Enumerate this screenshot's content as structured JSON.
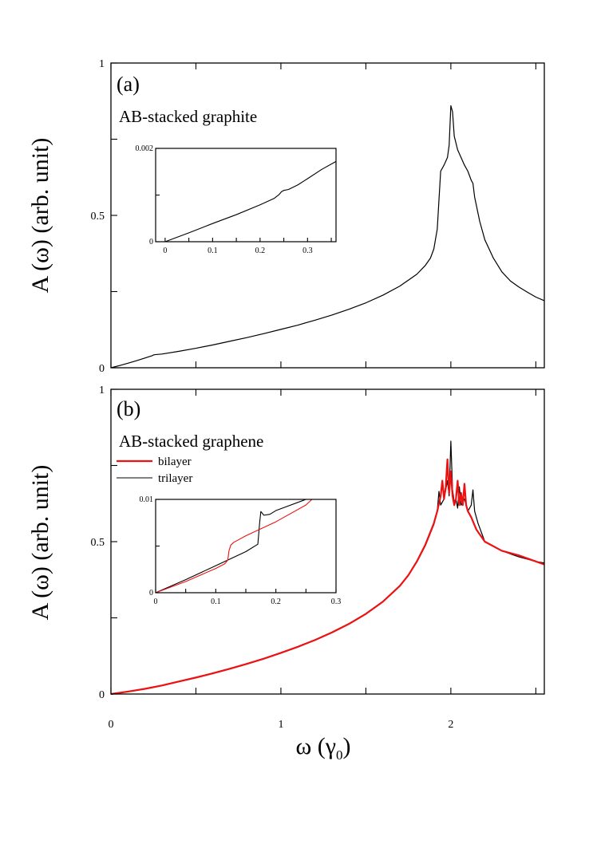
{
  "figure": {
    "xlabel": "ω (γ",
    "xlabel_sub": "0",
    "xlabel_close": ")"
  },
  "chart_data": [
    {
      "type": "line",
      "panel_label": "(a)",
      "title": "AB-stacked graphite",
      "xlabel": "ω (γ0)",
      "ylabel": "A (ω) (arb. unit)",
      "xlim": [
        0,
        2.55
      ],
      "ylim": [
        0,
        1
      ],
      "xticks": [
        0,
        1,
        2
      ],
      "yticks": [
        0,
        0.5,
        1
      ],
      "yticklabels": [
        "0",
        "0.5",
        "1"
      ],
      "series": [
        {
          "color": "#000000",
          "x": [
            0,
            0.05,
            0.1,
            0.15,
            0.2,
            0.245,
            0.25,
            0.26,
            0.3,
            0.4,
            0.5,
            0.6,
            0.7,
            0.8,
            0.9,
            1.0,
            1.1,
            1.2,
            1.3,
            1.4,
            1.5,
            1.6,
            1.7,
            1.8,
            1.85,
            1.88,
            1.9,
            1.92,
            1.94,
            1.96,
            1.98,
            1.99,
            2.0,
            2.01,
            2.02,
            2.04,
            2.06,
            2.08,
            2.1,
            2.12,
            2.13,
            2.14,
            2.17,
            2.2,
            2.25,
            2.3,
            2.35,
            2.4,
            2.45,
            2.5,
            2.55
          ],
          "y": [
            0,
            0.007,
            0.015,
            0.023,
            0.032,
            0.04,
            0.042,
            0.043,
            0.045,
            0.054,
            0.064,
            0.075,
            0.087,
            0.099,
            0.112,
            0.126,
            0.14,
            0.156,
            0.173,
            0.192,
            0.213,
            0.238,
            0.268,
            0.307,
            0.336,
            0.36,
            0.39,
            0.455,
            0.645,
            0.665,
            0.69,
            0.73,
            0.86,
            0.84,
            0.76,
            0.715,
            0.69,
            0.665,
            0.645,
            0.615,
            0.605,
            0.56,
            0.48,
            0.42,
            0.36,
            0.315,
            0.285,
            0.265,
            0.248,
            0.232,
            0.22
          ]
        }
      ],
      "inset": {
        "xlim": [
          -0.02,
          0.36
        ],
        "ylim": [
          0,
          0.002
        ],
        "xticks": [
          0,
          0.1,
          0.2,
          0.3
        ],
        "xticklabels": [
          "0",
          "0.1",
          "0.2",
          "0.3"
        ],
        "yticks": [
          0,
          0.001,
          0.002
        ],
        "yticklabels": [
          "0",
          "",
          "0.002"
        ],
        "series": [
          {
            "color": "#000000",
            "x": [
              0,
              0.05,
              0.1,
              0.15,
              0.2,
              0.23,
              0.24,
              0.245,
              0.25,
              0.26,
              0.28,
              0.3,
              0.33,
              0.36
            ],
            "y": [
              0,
              0.00019,
              0.00039,
              0.00058,
              0.00079,
              0.00093,
              0.00101,
              0.00107,
              0.0011,
              0.00112,
              0.00122,
              0.00135,
              0.00155,
              0.00172
            ]
          }
        ]
      }
    },
    {
      "type": "line",
      "panel_label": "(b)",
      "title": "AB-stacked graphene",
      "xlabel": "ω (γ0)",
      "ylabel": "A (ω) (arb. unit)",
      "xlim": [
        0,
        2.55
      ],
      "ylim": [
        0,
        1
      ],
      "xticks": [
        0,
        1,
        2
      ],
      "xticklabels": [
        "0",
        "1",
        "2"
      ],
      "yticks": [
        0,
        0.5,
        1
      ],
      "yticklabels": [
        "0",
        "0.5",
        "1"
      ],
      "legend": {
        "placement": "top-left"
      },
      "series": [
        {
          "name": "bilayer",
          "color": "#ee1111",
          "x": [
            0,
            0.1,
            0.2,
            0.3,
            0.4,
            0.5,
            0.6,
            0.7,
            0.8,
            0.9,
            1.0,
            1.1,
            1.2,
            1.3,
            1.4,
            1.5,
            1.6,
            1.7,
            1.75,
            1.8,
            1.85,
            1.9,
            1.92,
            1.94,
            1.95,
            1.96,
            1.97,
            1.98,
            1.99,
            2.0,
            2.01,
            2.02,
            2.03,
            2.04,
            2.05,
            2.06,
            2.07,
            2.08,
            2.09,
            2.1,
            2.12,
            2.15,
            2.2,
            2.3,
            2.4,
            2.5,
            2.55
          ],
          "y": [
            0,
            0.008,
            0.017,
            0.028,
            0.041,
            0.054,
            0.068,
            0.083,
            0.099,
            0.116,
            0.135,
            0.155,
            0.177,
            0.202,
            0.23,
            0.263,
            0.303,
            0.355,
            0.39,
            0.435,
            0.49,
            0.56,
            0.6,
            0.65,
            0.7,
            0.64,
            0.68,
            0.77,
            0.66,
            0.73,
            0.65,
            0.62,
            0.64,
            0.7,
            0.62,
            0.66,
            0.62,
            0.69,
            0.62,
            0.6,
            0.58,
            0.54,
            0.5,
            0.47,
            0.455,
            0.435,
            0.425
          ]
        },
        {
          "name": "trilayer",
          "color": "#000000",
          "x": [
            0,
            0.1,
            0.2,
            0.3,
            0.4,
            0.5,
            0.6,
            0.7,
            0.8,
            0.9,
            1.0,
            1.1,
            1.2,
            1.3,
            1.4,
            1.5,
            1.6,
            1.7,
            1.75,
            1.8,
            1.85,
            1.9,
            1.92,
            1.93,
            1.94,
            1.96,
            1.98,
            1.99,
            2.0,
            2.01,
            2.02,
            2.03,
            2.04,
            2.05,
            2.06,
            2.08,
            2.1,
            2.12,
            2.13,
            2.14,
            2.16,
            2.2,
            2.3,
            2.4,
            2.5,
            2.55
          ],
          "y": [
            0,
            0.007,
            0.018,
            0.029,
            0.042,
            0.055,
            0.069,
            0.084,
            0.1,
            0.117,
            0.136,
            0.156,
            0.178,
            0.203,
            0.231,
            0.264,
            0.304,
            0.356,
            0.39,
            0.433,
            0.487,
            0.556,
            0.6,
            0.665,
            0.62,
            0.64,
            0.7,
            0.65,
            0.83,
            0.67,
            0.63,
            0.64,
            0.61,
            0.68,
            0.62,
            0.64,
            0.6,
            0.62,
            0.67,
            0.6,
            0.56,
            0.5,
            0.47,
            0.45,
            0.435,
            0.43
          ]
        }
      ],
      "inset": {
        "xlim": [
          0,
          0.3
        ],
        "ylim": [
          0,
          0.01
        ],
        "xticks": [
          0,
          0.1,
          0.2,
          0.3
        ],
        "xticklabels": [
          "0",
          "0.1",
          "0.2",
          "0.3"
        ],
        "yticks": [
          0,
          0.005,
          0.01
        ],
        "yticklabels": [
          "0",
          "",
          "0.01"
        ],
        "series": [
          {
            "name": "bilayer",
            "color": "#ee1111",
            "x": [
              0,
              0.05,
              0.1,
              0.115,
              0.12,
              0.122,
              0.125,
              0.13,
              0.15,
              0.2,
              0.25,
              0.26
            ],
            "y": [
              0,
              0.0012,
              0.0026,
              0.0031,
              0.0035,
              0.0045,
              0.0051,
              0.0054,
              0.0061,
              0.0076,
              0.0094,
              0.01
            ]
          },
          {
            "name": "trilayer",
            "color": "#000000",
            "x": [
              0,
              0.05,
              0.1,
              0.15,
              0.17,
              0.173,
              0.175,
              0.18,
              0.19,
              0.2,
              0.25
            ],
            "y": [
              0,
              0.0014,
              0.0029,
              0.0044,
              0.0052,
              0.0075,
              0.0087,
              0.0083,
              0.0084,
              0.0088,
              0.01
            ]
          }
        ]
      }
    }
  ]
}
